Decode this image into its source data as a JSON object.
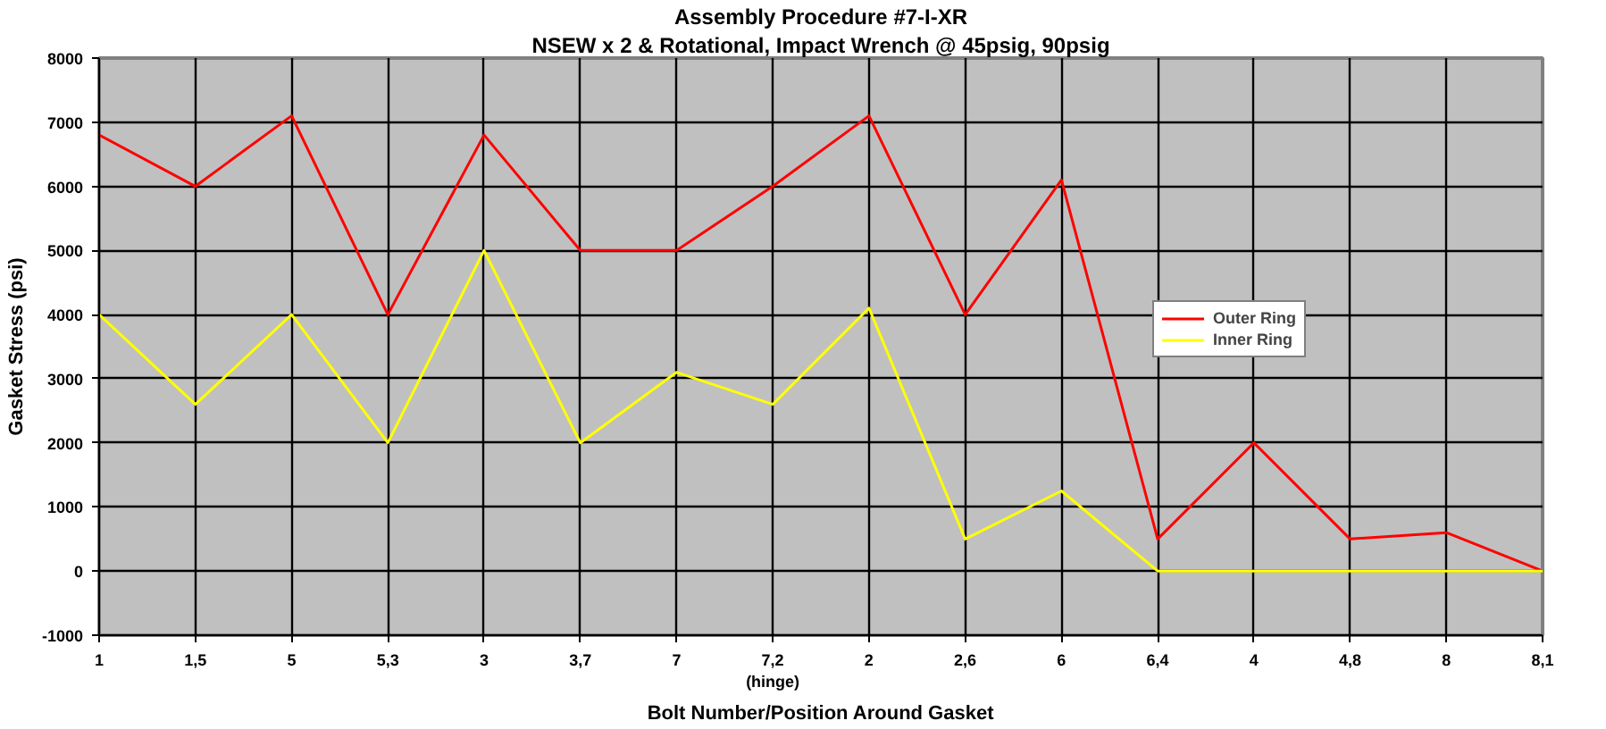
{
  "chart_data": {
    "type": "line",
    "title": "Assembly Procedure #7-I-XR",
    "subtitle": "NSEW x 2 & Rotational, Impact Wrench @ 45psig, 90psig",
    "xlabel": "Bolt Number/Position Around Gasket",
    "ylabel": "Gasket Stress (psi)",
    "categories": [
      "1",
      "1,5",
      "5",
      "5,3",
      "3",
      "3,7",
      "7",
      "7,2\n(hinge)",
      "2",
      "2,6",
      "6",
      "6,4",
      "4",
      "4,8",
      "8",
      "8,1"
    ],
    "series": [
      {
        "name": "Outer Ring",
        "color": "#ff0000",
        "values": [
          6800,
          6000,
          7100,
          4000,
          6800,
          5000,
          5000,
          6000,
          7100,
          4000,
          6100,
          500,
          2000,
          500,
          600,
          0
        ]
      },
      {
        "name": "Inner Ring",
        "color": "#ffff00",
        "values": [
          4000,
          2600,
          4000,
          2000,
          5000,
          2000,
          3100,
          2600,
          4100,
          500,
          1250,
          0,
          0,
          0,
          0,
          0
        ]
      }
    ],
    "ylim": [
      -1000,
      8000
    ],
    "yticks": [
      -1000,
      0,
      1000,
      2000,
      3000,
      4000,
      5000,
      6000,
      7000,
      8000
    ],
    "grid": true,
    "legend": "right",
    "marker": "none",
    "line_style": "solid"
  }
}
